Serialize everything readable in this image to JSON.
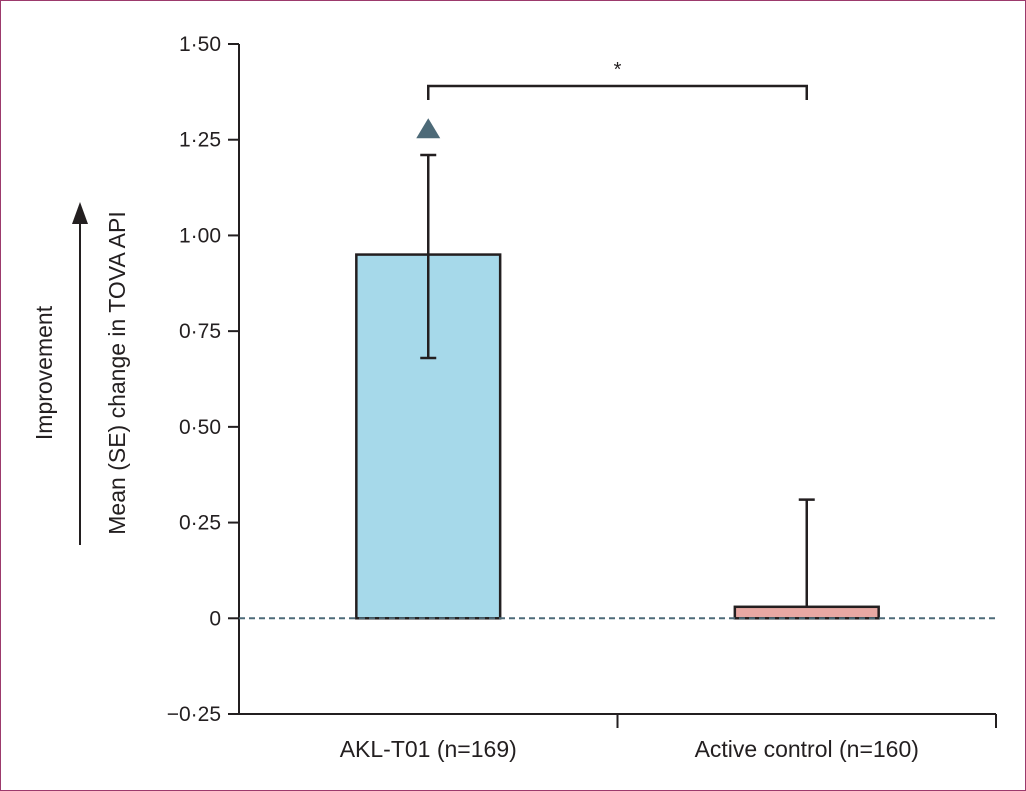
{
  "chart_data": {
    "type": "bar",
    "categories": [
      "AKL-T01 (n=169)",
      "Active control (n=160)"
    ],
    "values": [
      0.95,
      0.03
    ],
    "error_upper": [
      1.21,
      0.31
    ],
    "error_lower": [
      0.68,
      null
    ],
    "ylabel": "Mean (SE) change in TOVA API",
    "direction_label": "Improvement",
    "ylim": [
      -0.25,
      1.5
    ],
    "yticks": [
      -0.25,
      0,
      0.25,
      0.5,
      0.75,
      1.0,
      1.25,
      1.5
    ],
    "ytick_labels": [
      "−0·25",
      "0",
      "0·25",
      "0·50",
      "0·75",
      "1·00",
      "1·25",
      "1·50"
    ],
    "significance_label": "*",
    "marker_series_index": 0,
    "marker_value": 1.28,
    "zero_line": "dashed",
    "grid": false,
    "colors": {
      "bars": [
        "#a6d9ea",
        "#e8a8a3"
      ],
      "bar_outline": "#231f20",
      "zero_line": "#4d6a78",
      "marker": "#4d6a78",
      "frame": "#9c3a6c"
    }
  }
}
